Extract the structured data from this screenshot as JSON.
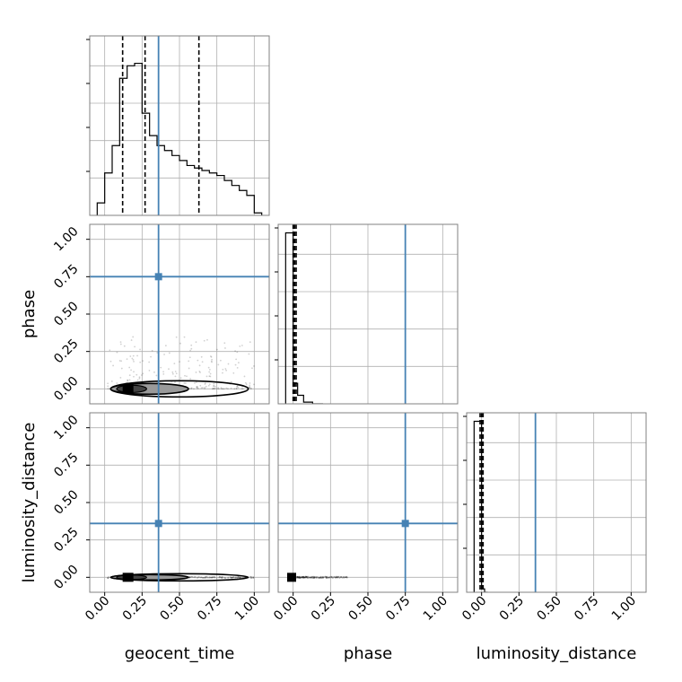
{
  "chart_data": {
    "type": "corner",
    "parameters": [
      "geocent_time",
      "phase",
      "luminosity_distance"
    ],
    "truths": {
      "geocent_time": 0.36,
      "phase": 0.75,
      "luminosity_distance": 0.36
    },
    "tick_labels": [
      "0.00",
      "0.25",
      "0.50",
      "0.75",
      "1.00"
    ],
    "axis_range": [
      -0.1,
      1.1
    ],
    "grid": true,
    "colors": {
      "truth": "#4682b4",
      "hist": "#000000",
      "grid": "#b0b0b0",
      "frame": "#808080"
    },
    "histograms": {
      "geocent_time": {
        "bin_edges": [
          -0.05,
          0.0,
          0.05,
          0.1,
          0.15,
          0.2,
          0.25,
          0.3,
          0.35,
          0.4,
          0.45,
          0.5,
          0.55,
          0.6,
          0.65,
          0.7,
          0.75,
          0.8,
          0.85,
          0.9,
          0.95,
          1.0,
          1.05
        ],
        "counts": [
          0.05,
          0.17,
          0.28,
          0.55,
          0.6,
          0.61,
          0.41,
          0.32,
          0.28,
          0.26,
          0.24,
          0.22,
          0.2,
          0.19,
          0.18,
          0.17,
          0.16,
          0.14,
          0.12,
          0.1,
          0.08,
          0.01
        ],
        "quantiles": [
          0.12,
          0.27,
          0.63
        ],
        "ylim": [
          0,
          0.72
        ]
      },
      "phase": {
        "bin_edges": [
          -0.05,
          0.0,
          0.03,
          0.07,
          0.13,
          0.2
        ],
        "counts": [
          1.0,
          0.12,
          0.05,
          0.01,
          0.0
        ],
        "quantiles": [
          0.0,
          0.01,
          0.02
        ],
        "ylim": [
          0,
          1.05
        ]
      },
      "luminosity_distance": {
        "bin_edges": [
          -0.05,
          0.0,
          0.02,
          0.04
        ],
        "counts": [
          1.0,
          0.02,
          0.0
        ],
        "quantiles": [
          -0.01,
          0.0,
          0.01
        ],
        "ylim": [
          0,
          1.05
        ]
      }
    },
    "panels_2d": [
      {
        "x": "geocent_time",
        "y": "phase"
      },
      {
        "x": "geocent_time",
        "y": "luminosity_distance"
      },
      {
        "x": "phase",
        "y": "luminosity_distance"
      }
    ]
  }
}
